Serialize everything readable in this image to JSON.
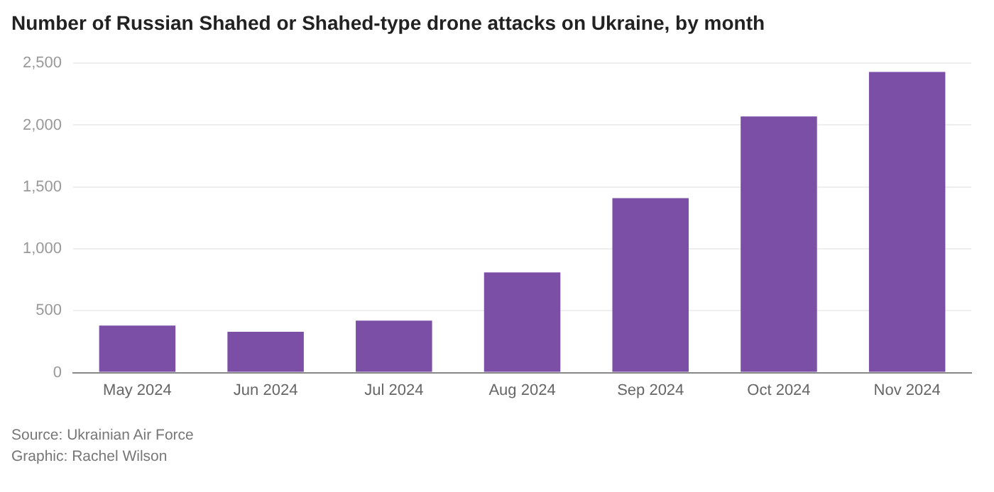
{
  "chart_data": {
    "type": "bar",
    "title": "Number of Russian Shahed or Shahed-type drone attacks on Ukraine, by month",
    "categories": [
      "May 2024",
      "Jun 2024",
      "Jul 2024",
      "Aug 2024",
      "Sep 2024",
      "Oct 2024",
      "Nov 2024"
    ],
    "values": [
      380,
      330,
      420,
      810,
      1410,
      2070,
      2430
    ],
    "color": "#7b4fa6",
    "ylim": [
      0,
      2500
    ],
    "yticks": [
      0,
      {
        "value": 500,
        "label": "500"
      },
      {
        "value": 1000,
        "label": "1,000"
      },
      {
        "value": 1500,
        "label": "1,500"
      },
      {
        "value": 2000,
        "label": "2,000"
      },
      {
        "value": 2500,
        "label": "2,500"
      }
    ],
    "grid": "y",
    "annotations": [
      "Source: Ukrainian Air Force",
      "Graphic: Rachel Wilson"
    ]
  }
}
